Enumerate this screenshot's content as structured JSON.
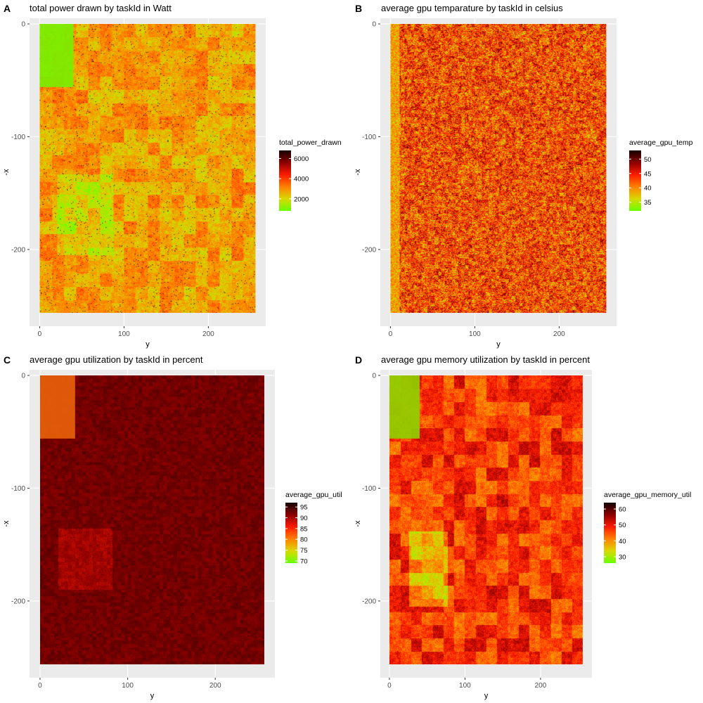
{
  "chart_data": [
    {
      "tag": "A",
      "type": "heatmap",
      "title": "total power drawn by taskId in Watt",
      "xlabel": "y",
      "ylabel": "-x",
      "x_ticks": [
        0,
        100,
        200
      ],
      "y_ticks": [
        0,
        -100,
        -200
      ],
      "xlim": [
        -12,
        268
      ],
      "ylim": [
        -268,
        5
      ],
      "data_extent": {
        "x": [
          0,
          256
        ],
        "y": [
          -256,
          0
        ]
      },
      "grid": true,
      "legend": {
        "title": "total_power_drawn",
        "position": "right",
        "ticks": [
          2000,
          4000,
          6000
        ],
        "range": [
          800,
          6800
        ]
      },
      "colors": [
        "#66ff00",
        "#d9d900",
        "#ff8000",
        "#ff1a00",
        "#8b0000",
        "#140000"
      ],
      "block": {
        "x": [
          0,
          40
        ],
        "y": [
          -56,
          0
        ],
        "color": "#78ee00"
      }
    },
    {
      "tag": "B",
      "type": "heatmap",
      "title": "average gpu temparature by taskId in celsius",
      "xlabel": "y",
      "ylabel": "-x",
      "x_ticks": [
        0,
        100,
        200
      ],
      "y_ticks": [
        0,
        -100,
        -200
      ],
      "xlim": [
        -12,
        268
      ],
      "ylim": [
        -268,
        5
      ],
      "data_extent": {
        "x": [
          0,
          256
        ],
        "y": [
          -256,
          0
        ]
      },
      "grid": true,
      "legend": {
        "title": "average_gpu_temp",
        "position": "right",
        "ticks": [
          35,
          40,
          45,
          50
        ],
        "range": [
          32,
          53
        ]
      },
      "colors": [
        "#66ff00",
        "#d9d900",
        "#ff8000",
        "#ff1a00",
        "#8b0000",
        "#140000"
      ],
      "block": null
    },
    {
      "tag": "C",
      "type": "heatmap",
      "title": "average gpu utilization by taskId in percent",
      "xlabel": "y",
      "ylabel": "-x",
      "x_ticks": [
        0,
        100,
        200
      ],
      "y_ticks": [
        0,
        -100,
        -200
      ],
      "xlim": [
        -12,
        268
      ],
      "ylim": [
        -268,
        5
      ],
      "data_extent": {
        "x": [
          0,
          256
        ],
        "y": [
          -256,
          0
        ]
      },
      "grid": true,
      "legend": {
        "title": "average_gpu_util",
        "position": "right",
        "ticks": [
          70,
          75,
          80,
          85,
          90,
          95
        ],
        "range": [
          69,
          97
        ]
      },
      "colors": [
        "#66ff00",
        "#d9d900",
        "#ff8000",
        "#ff1a00",
        "#8b0000",
        "#140000"
      ],
      "block": {
        "x": [
          0,
          40
        ],
        "y": [
          -56,
          0
        ],
        "color": "#e8600a"
      }
    },
    {
      "tag": "D",
      "type": "heatmap",
      "title": "average gpu memory utilization by taskId in percent",
      "xlabel": "y",
      "ylabel": "-x",
      "x_ticks": [
        0,
        100,
        200
      ],
      "y_ticks": [
        0,
        -100,
        -200
      ],
      "xlim": [
        -12,
        268
      ],
      "ylim": [
        -268,
        5
      ],
      "data_extent": {
        "x": [
          0,
          256
        ],
        "y": [
          -256,
          0
        ]
      },
      "grid": true,
      "legend": {
        "title": "average_gpu_memory_util",
        "position": "right",
        "ticks": [
          30,
          40,
          50,
          60
        ],
        "range": [
          26,
          64
        ]
      },
      "colors": [
        "#66ff00",
        "#d9d900",
        "#ff8000",
        "#ff1a00",
        "#8b0000",
        "#140000"
      ],
      "block": {
        "x": [
          0,
          40
        ],
        "y": [
          -56,
          0
        ],
        "color": "#8fd000"
      }
    }
  ]
}
